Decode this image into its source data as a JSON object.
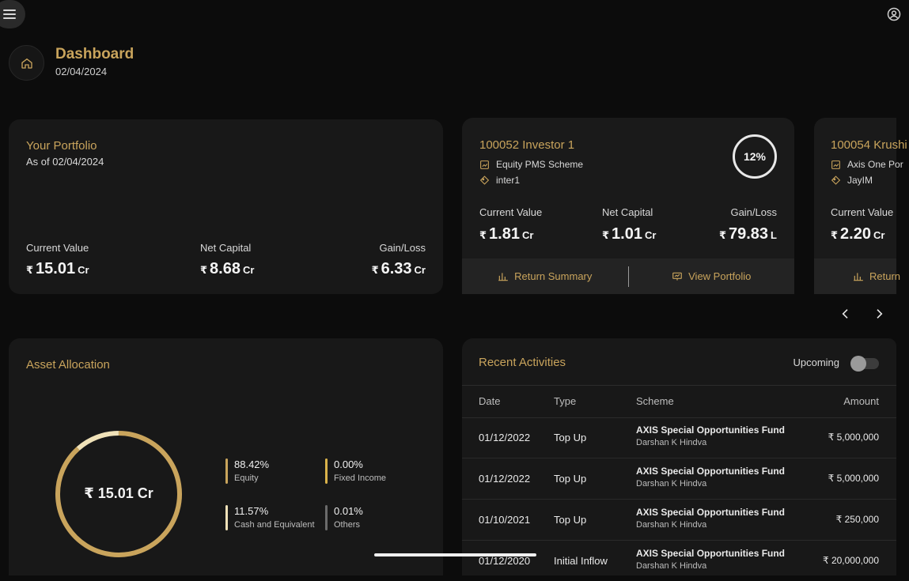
{
  "header": {
    "title": "Dashboard",
    "date": "02/04/2024"
  },
  "portfolio": {
    "title": "Your Portfolio",
    "as_of": "As of 02/04/2024",
    "metrics": [
      {
        "label": "Current Value",
        "currency": "₹",
        "value": "15.01",
        "unit": "Cr"
      },
      {
        "label": "Net Capital",
        "currency": "₹",
        "value": "8.68",
        "unit": "Cr"
      },
      {
        "label": "Gain/Loss",
        "currency": "₹",
        "value": "6.33",
        "unit": "Cr"
      }
    ]
  },
  "investors": [
    {
      "title": "100052 Investor 1",
      "scheme": "Equity PMS Scheme",
      "tag": "inter1",
      "percent": "12%",
      "metrics": [
        {
          "label": "Current Value",
          "currency": "₹",
          "value": "1.81",
          "unit": "Cr"
        },
        {
          "label": "Net Capital",
          "currency": "₹",
          "value": "1.01",
          "unit": "Cr"
        },
        {
          "label": "Gain/Loss",
          "currency": "₹",
          "value": "79.83",
          "unit": "L"
        }
      ],
      "return_summary": "Return Summary",
      "view_portfolio": "View Portfolio"
    },
    {
      "title": "100054 Krushi",
      "scheme": "Axis One Por",
      "tag": "JayIM",
      "metrics": [
        {
          "label": "Current Value",
          "currency": "₹",
          "value": "2.20",
          "unit": "Cr"
        }
      ],
      "return_summary": "Return"
    }
  ],
  "asset_allocation": {
    "title": "Asset Allocation",
    "total": "₹ 15.01 Cr",
    "legend": [
      {
        "pct": "88.42%",
        "label": "Equity",
        "color": "#c9a45c"
      },
      {
        "pct": "0.00%",
        "label": "Fixed Income",
        "color": "#d9b24a"
      },
      {
        "pct": "11.57%",
        "label": "Cash and Equivalent",
        "color": "#efe1b8"
      },
      {
        "pct": "0.01%",
        "label": "Others",
        "color": "#6b6b6b"
      }
    ],
    "chart_data": {
      "type": "pie",
      "categories": [
        "Equity",
        "Fixed Income",
        "Cash and Equivalent",
        "Others"
      ],
      "values": [
        88.42,
        0.0,
        11.57,
        0.01
      ]
    }
  },
  "activities": {
    "title": "Recent Activities",
    "toggle_label": "Upcoming",
    "toggle_on": false,
    "columns": [
      "Date",
      "Type",
      "Scheme",
      "Amount"
    ],
    "rows": [
      {
        "date": "01/12/2022",
        "type": "Top Up",
        "scheme": "AXIS Special Opportunities Fund",
        "investor": "Darshan K Hindva",
        "amount": "₹ 5,000,000"
      },
      {
        "date": "01/12/2022",
        "type": "Top Up",
        "scheme": "AXIS Special Opportunities Fund",
        "investor": "Darshan K Hindva",
        "amount": "₹ 5,000,000"
      },
      {
        "date": "01/10/2021",
        "type": "Top Up",
        "scheme": "AXIS Special Opportunities Fund",
        "investor": "Darshan K Hindva",
        "amount": "₹ 250,000"
      },
      {
        "date": "01/12/2020",
        "type": "Initial Inflow",
        "scheme": "AXIS Special Opportunities Fund",
        "investor": "Darshan K Hindva",
        "amount": "₹ 20,000,000"
      }
    ]
  },
  "colors": {
    "accent": "#c9a45c",
    "background": "#0c0c0c",
    "card": "#181818"
  }
}
